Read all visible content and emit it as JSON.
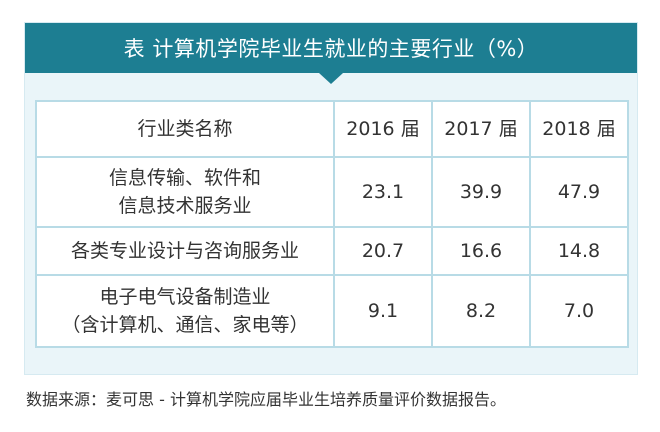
{
  "title": "表  计算机学院毕业生就业的主要行业（%）",
  "table": {
    "headers": [
      "行业类名称",
      "2016 届",
      "2017 届",
      "2018 届"
    ],
    "rows": [
      {
        "name_lines": [
          "信息传输、软件和",
          "信息技术服务业"
        ],
        "values": [
          "23.1",
          "39.9",
          "47.9"
        ]
      },
      {
        "name_lines": [
          "各类专业设计与咨询服务业"
        ],
        "values": [
          "20.7",
          "16.6",
          "14.8"
        ]
      },
      {
        "name_lines": [
          "电子电气设备制造业",
          "（含计算机、通信、家电等）"
        ],
        "values": [
          "9.1",
          "8.2",
          "7.0"
        ]
      }
    ]
  },
  "source": "数据来源：麦可思 - 计算机学院应届毕业生培养质量评价数据报告。",
  "colors": {
    "title_bar": "#1d7e92",
    "card_bg": "#eaf5f9",
    "border": "#b8dbe6"
  }
}
